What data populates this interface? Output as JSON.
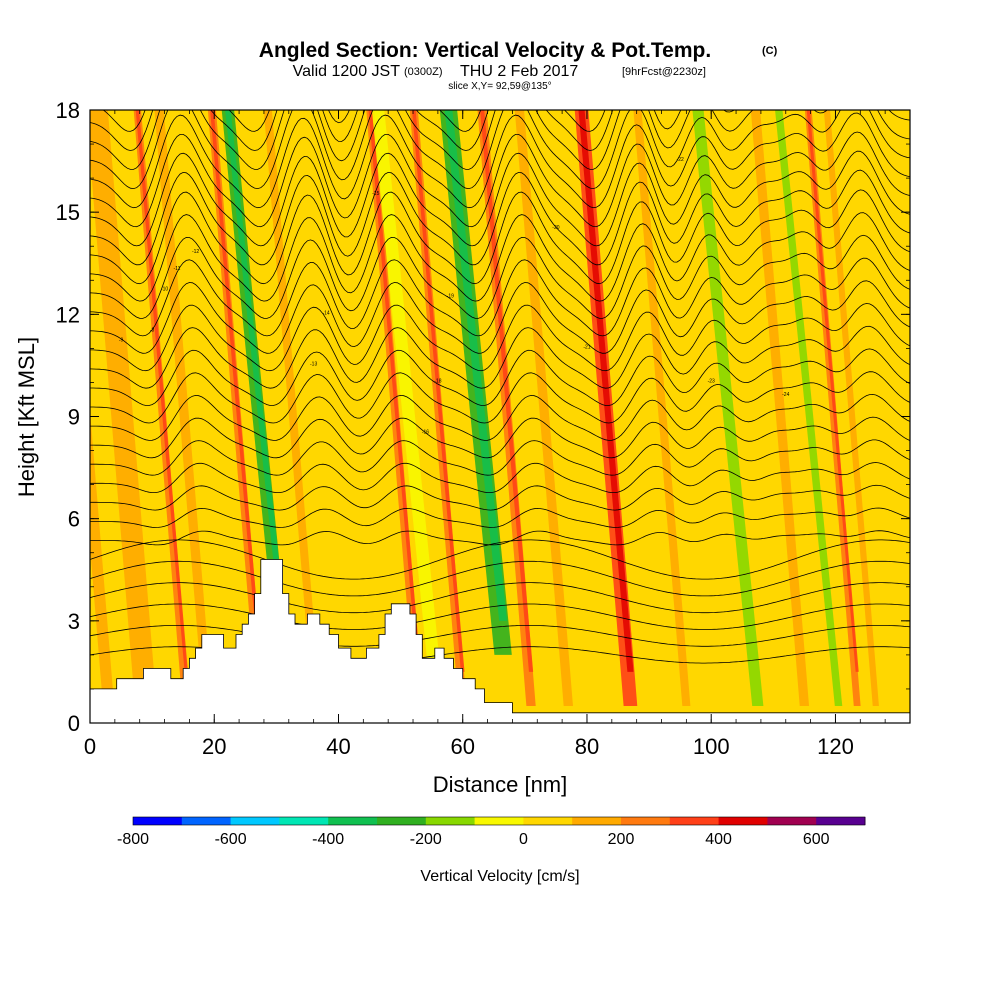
{
  "title": {
    "main": "Angled Section: Vertical Velocity & Pot.Temp.",
    "units": "(C)",
    "valid_prefix": "Valid 1200 JST",
    "valid_z": "(0300Z)",
    "valid_date": "THU 2 Feb 2017",
    "fcst": "[9hrFcst@2230z]",
    "slice": "slice X,Y= 92,59@135°"
  },
  "chart_data": {
    "type": "heatmap",
    "xlabel": "Distance [nm]",
    "ylabel": "Height [Kft MSL]",
    "xlim": [
      0,
      132
    ],
    "ylim": [
      0,
      18
    ],
    "x_ticks": [
      0,
      20,
      40,
      60,
      80,
      100,
      120
    ],
    "y_ticks": [
      0,
      3,
      6,
      9,
      12,
      15,
      18
    ],
    "colorbar": {
      "label": "Vertical Velocity [cm/s]",
      "range": [
        -800,
        700
      ],
      "ticks": [
        -800,
        -600,
        -400,
        -200,
        0,
        200,
        400,
        600
      ],
      "colors": [
        "#0000ff",
        "#0064ff",
        "#00c8ff",
        "#00e6b4",
        "#10c050",
        "#30b020",
        "#88d800",
        "#f8f800",
        "#ffd700",
        "#ffaa00",
        "#ff7a10",
        "#ff4018",
        "#e00000",
        "#a00050",
        "#580090"
      ]
    },
    "field_bands": [
      {
        "x": 3,
        "w": 1.8,
        "value": 150
      },
      {
        "x": 9,
        "w": 3.5,
        "value": 100
      },
      {
        "x": 15.5,
        "w": 1.2,
        "value": 200
      },
      {
        "x": 19,
        "w": 1.5,
        "value": 150
      },
      {
        "x": 27.5,
        "w": 1.3,
        "value": 200
      },
      {
        "x": 31,
        "w": 2.0,
        "value": -250
      },
      {
        "x": 36.5,
        "w": 1.3,
        "value": 150
      },
      {
        "x": 53,
        "w": 1.3,
        "value": 250
      },
      {
        "x": 56,
        "w": 2.0,
        "value": -100
      },
      {
        "x": 60,
        "w": 1.3,
        "value": 250
      },
      {
        "x": 66.5,
        "w": 2.8,
        "value": -250
      },
      {
        "x": 71,
        "w": 1.5,
        "value": 200
      },
      {
        "x": 77,
        "w": 1.5,
        "value": 150
      },
      {
        "x": 87,
        "w": 2.2,
        "value": 300
      },
      {
        "x": 96,
        "w": 1.3,
        "value": 150
      },
      {
        "x": 107.5,
        "w": 1.8,
        "value": -150
      },
      {
        "x": 115,
        "w": 1.5,
        "value": 150
      },
      {
        "x": 120.5,
        "w": 1.2,
        "value": -150
      },
      {
        "x": 123.5,
        "w": 1.1,
        "value": 200
      },
      {
        "x": 126.5,
        "w": 1.0,
        "value": 150
      }
    ],
    "terrain_kft": [
      [
        0,
        1.0
      ],
      [
        4.3,
        1.0
      ],
      [
        4.3,
        1.3
      ],
      [
        8.6,
        1.3
      ],
      [
        8.6,
        1.6
      ],
      [
        13,
        1.6
      ],
      [
        13,
        1.3
      ],
      [
        15,
        1.3
      ],
      [
        15,
        1.6
      ],
      [
        16,
        1.6
      ],
      [
        16,
        1.9
      ],
      [
        17,
        1.9
      ],
      [
        17,
        2.2
      ],
      [
        18,
        2.2
      ],
      [
        18,
        2.6
      ],
      [
        21.5,
        2.6
      ],
      [
        21.5,
        2.2
      ],
      [
        23.5,
        2.2
      ],
      [
        23.5,
        2.6
      ],
      [
        24.5,
        2.6
      ],
      [
        24.5,
        2.9
      ],
      [
        25.5,
        2.9
      ],
      [
        25.5,
        3.2
      ],
      [
        26.5,
        3.2
      ],
      [
        26.5,
        3.8
      ],
      [
        27.5,
        3.8
      ],
      [
        27.5,
        4.8
      ],
      [
        31,
        4.8
      ],
      [
        31,
        3.8
      ],
      [
        32,
        3.8
      ],
      [
        32,
        3.2
      ],
      [
        33,
        3.2
      ],
      [
        33,
        2.9
      ],
      [
        35,
        2.9
      ],
      [
        35,
        3.2
      ],
      [
        37,
        3.2
      ],
      [
        37,
        2.9
      ],
      [
        38.5,
        2.9
      ],
      [
        38.5,
        2.6
      ],
      [
        40,
        2.6
      ],
      [
        40,
        2.2
      ],
      [
        42,
        2.2
      ],
      [
        42,
        1.9
      ],
      [
        44.5,
        1.9
      ],
      [
        44.5,
        2.2
      ],
      [
        46.5,
        2.2
      ],
      [
        46.5,
        2.6
      ],
      [
        47.5,
        2.6
      ],
      [
        47.5,
        3.2
      ],
      [
        48.5,
        3.2
      ],
      [
        48.5,
        3.5
      ],
      [
        51.5,
        3.5
      ],
      [
        51.5,
        3.2
      ],
      [
        52.5,
        3.2
      ],
      [
        52.5,
        2.6
      ],
      [
        53.5,
        2.6
      ],
      [
        53.5,
        1.9
      ],
      [
        55.5,
        1.9
      ],
      [
        55.5,
        2.2
      ],
      [
        57,
        2.2
      ],
      [
        57,
        1.9
      ],
      [
        58.5,
        1.9
      ],
      [
        58.5,
        1.6
      ],
      [
        60,
        1.6
      ],
      [
        60,
        1.3
      ],
      [
        62,
        1.3
      ],
      [
        62,
        1.0
      ],
      [
        63.5,
        1.0
      ],
      [
        63.5,
        0.6
      ],
      [
        68,
        0.6
      ],
      [
        68,
        0.3
      ],
      [
        132,
        0.3
      ]
    ],
    "theta_contours": {
      "count": 30,
      "wave_centers_nm": [
        18,
        38,
        51,
        72,
        92,
        103,
        112,
        119,
        127
      ],
      "label_samples": [
        "-9",
        "-8",
        "-10",
        "-11",
        "-12",
        "-13",
        "-14",
        "-15",
        "-16",
        "-18",
        "-19",
        "-20",
        "-21",
        "-22",
        "-23",
        "-24"
      ]
    }
  }
}
